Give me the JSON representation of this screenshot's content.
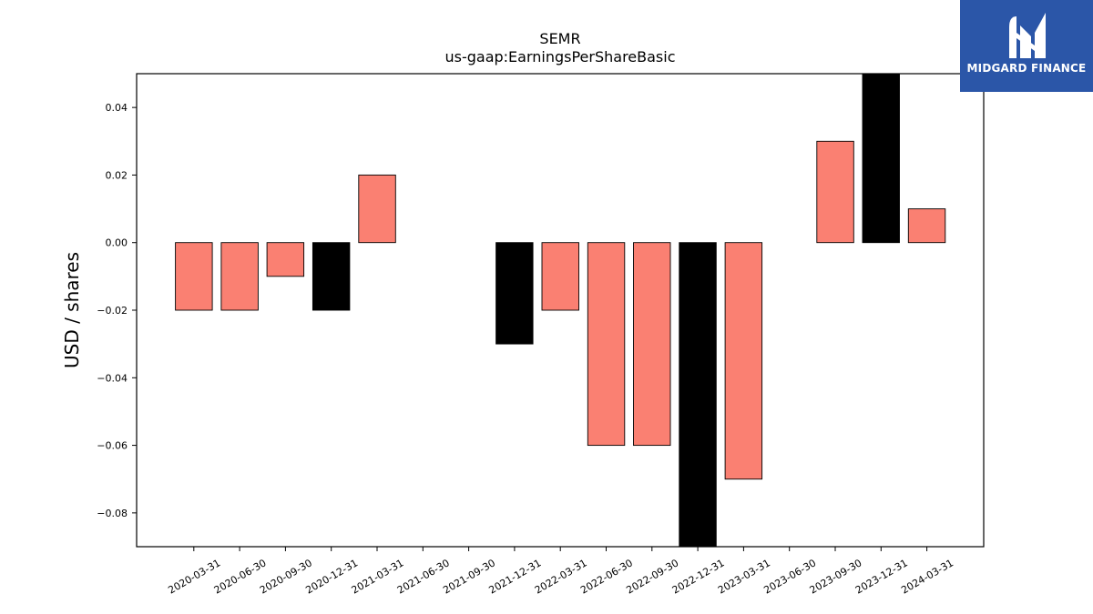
{
  "brand": {
    "name": "MIDGARD FINANCE",
    "bg_color": "#2b56a8",
    "mark_icon": "midgard-m-logo-icon"
  },
  "chart_data": {
    "type": "bar",
    "title": "SEMR",
    "subtitle": "us-gaap:EarningsPerShareBasic",
    "ylabel": "USD / shares",
    "xlabel": "",
    "ylim": [
      -0.09,
      0.05
    ],
    "yticks": [
      -0.08,
      -0.06,
      -0.04,
      -0.02,
      0.0,
      0.02,
      0.04
    ],
    "ytick_labels": [
      "−0.08",
      "−0.06",
      "−0.04",
      "−0.02",
      "0.00",
      "0.02",
      "0.04"
    ],
    "grid": false,
    "legend": "none",
    "categories": [
      "2020-03-31",
      "2020-06-30",
      "2020-09-30",
      "2020-12-31",
      "2021-03-31",
      "2021-06-30",
      "2021-09-30",
      "2021-12-31",
      "2022-03-31",
      "2022-06-30",
      "2022-09-30",
      "2022-12-31",
      "2023-03-31",
      "2023-06-30",
      "2023-09-30",
      "2023-12-31",
      "2024-03-31"
    ],
    "values": [
      -0.02,
      -0.02,
      -0.01,
      -0.02,
      0.02,
      0.0,
      0.0,
      -0.03,
      -0.02,
      -0.06,
      -0.06,
      -0.09,
      -0.07,
      0.0,
      0.03,
      0.05,
      0.01
    ],
    "bar_colors": [
      "#fa8072",
      "#fa8072",
      "#fa8072",
      "#000000",
      "#fa8072",
      "#fa8072",
      "#fa8072",
      "#000000",
      "#fa8072",
      "#fa8072",
      "#fa8072",
      "#000000",
      "#fa8072",
      "#fa8072",
      "#fa8072",
      "#000000",
      "#fa8072"
    ]
  }
}
